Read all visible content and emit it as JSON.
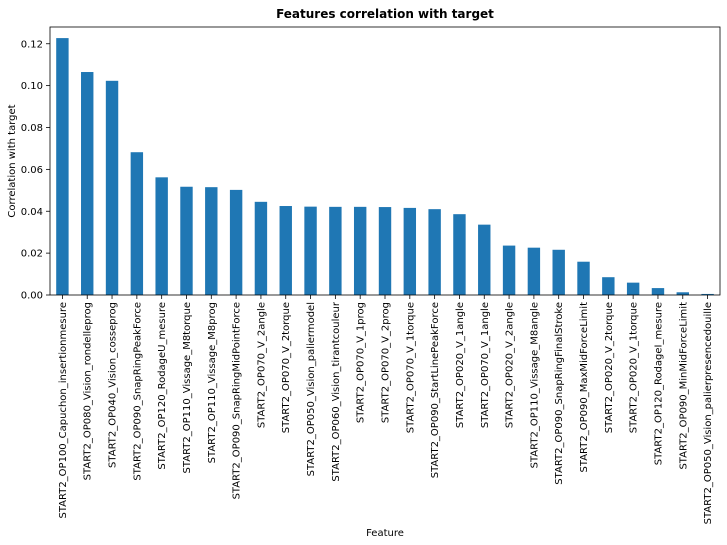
{
  "chart_data": {
    "type": "bar",
    "title": "Features correlation with target",
    "xlabel": "Feature",
    "ylabel": "Correlation with target",
    "ylim": [
      0,
      0.128
    ],
    "yticks": [
      "0.00",
      "0.02",
      "0.04",
      "0.06",
      "0.08",
      "0.10",
      "0.12"
    ],
    "ytick_values": [
      0,
      0.02,
      0.04,
      0.06,
      0.08,
      0.1,
      0.12
    ],
    "grid": false,
    "bar_color": "#1f77b4",
    "categories": [
      "START2_OP100_Capuchon_insertionmesure",
      "START2_OP080_Vision_rondelleprog",
      "START2_OP040_Vision_cosseprog",
      "START2_OP090_SnapRingPeakForce",
      "START2_OP120_RodageU_mesure",
      "START2_OP110_Vissage_M8torque",
      "START2_OP110_Vissage_M8prog",
      "START2_OP090_SnapRingMidPointForce",
      "START2_OP070_V_2angle",
      "START2_OP070_V_2torque",
      "START2_OP050_Vision_paliermodel",
      "START2_OP060_Vision_tirantcouleur",
      "START2_OP070_V_1prog",
      "START2_OP070_V_2prog",
      "START2_OP070_V_1torque",
      "START2_OP090_StartLinePeakForce",
      "START2_OP020_V_1angle",
      "START2_OP070_V_1angle",
      "START2_OP020_V_2angle",
      "START2_OP110_Vissage_M8angle",
      "START2_OP090_SnapRingFinalStroke",
      "START2_OP090_MaxMidForceLimit",
      "START2_OP020_V_2torque",
      "START2_OP020_V_1torque",
      "START2_OP120_RodageI_mesure",
      "START2_OP090_MinMidForceLimit",
      "START2_OP050_Vision_palierpresencedouille"
    ],
    "values": [
      0.1227,
      0.1065,
      0.1023,
      0.0682,
      0.0562,
      0.0517,
      0.0515,
      0.0502,
      0.0445,
      0.0425,
      0.0422,
      0.0421,
      0.0421,
      0.042,
      0.0416,
      0.041,
      0.0386,
      0.0336,
      0.0236,
      0.0226,
      0.0216,
      0.0159,
      0.0085,
      0.0059,
      0.0033,
      0.0013,
      0.0005
    ]
  }
}
